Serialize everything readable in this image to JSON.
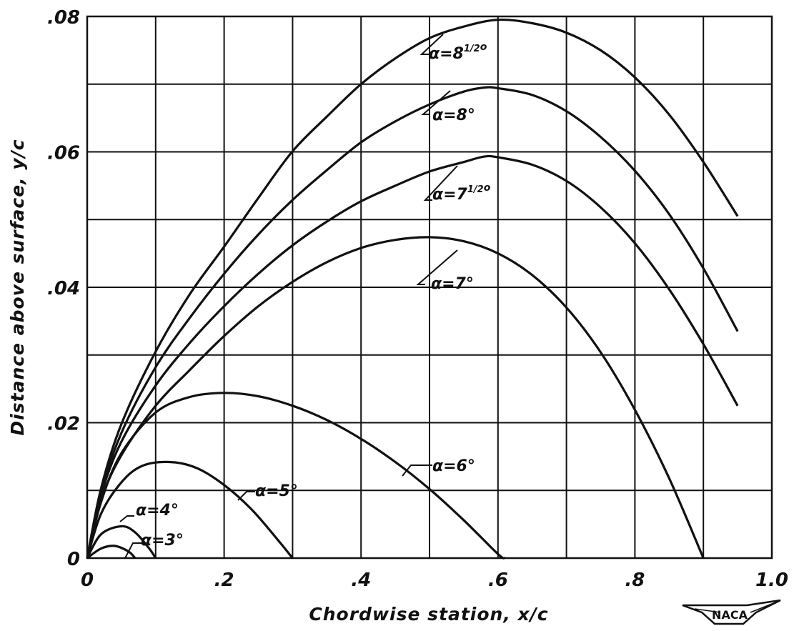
{
  "chart_data": {
    "type": "line",
    "title": "",
    "xlabel": "Chordwise station, x/c",
    "ylabel": "Distance above surface, y/c",
    "xlim": [
      0,
      1.0
    ],
    "ylim": [
      0,
      0.08
    ],
    "x_ticks": [
      {
        "value": 0,
        "label": "0"
      },
      {
        "value": 0.2,
        "label": ".2"
      },
      {
        "value": 0.4,
        "label": ".4"
      },
      {
        "value": 0.6,
        "label": ".6"
      },
      {
        "value": 0.8,
        "label": ".8"
      },
      {
        "value": 1.0,
        "label": "1.0"
      }
    ],
    "y_ticks": [
      {
        "value": 0,
        "label": "0"
      },
      {
        "value": 0.02,
        "label": ".02"
      },
      {
        "value": 0.04,
        "label": ".04"
      },
      {
        "value": 0.06,
        "label": ".06"
      },
      {
        "value": 0.08,
        "label": ".08"
      }
    ],
    "grid": true,
    "grid_step_x": 0.1,
    "grid_step_y": 0.01,
    "series": [
      {
        "name": "α=3°",
        "x": [
          0,
          0.02,
          0.04,
          0.06,
          0.07
        ],
        "y": [
          0,
          0.0014,
          0.0018,
          0.001,
          0
        ]
      },
      {
        "name": "α=4°",
        "x": [
          0,
          0.02,
          0.05,
          0.07,
          0.09,
          0.1
        ],
        "y": [
          0,
          0.0035,
          0.0047,
          0.0038,
          0.0015,
          0
        ]
      },
      {
        "name": "α=5°",
        "x": [
          0,
          0.02,
          0.05,
          0.08,
          0.12,
          0.16,
          0.2,
          0.24,
          0.28,
          0.3
        ],
        "y": [
          0,
          0.0065,
          0.0112,
          0.0136,
          0.0142,
          0.0133,
          0.0108,
          0.0072,
          0.0025,
          0
        ]
      },
      {
        "name": "α=6°",
        "x": [
          0,
          0.02,
          0.05,
          0.1,
          0.15,
          0.2,
          0.25,
          0.3,
          0.35,
          0.4,
          0.45,
          0.5,
          0.55,
          0.6,
          0.61
        ],
        "y": [
          0,
          0.0082,
          0.0155,
          0.0215,
          0.0238,
          0.0244,
          0.0239,
          0.0225,
          0.0204,
          0.0176,
          0.0142,
          0.0102,
          0.0056,
          0.0006,
          0
        ]
      },
      {
        "name": "α=7°",
        "x": [
          0,
          0.02,
          0.05,
          0.1,
          0.15,
          0.2,
          0.25,
          0.3,
          0.35,
          0.4,
          0.45,
          0.5,
          0.55,
          0.6,
          0.65,
          0.7,
          0.75,
          0.8,
          0.85,
          0.9
        ],
        "y": [
          0,
          0.0085,
          0.0152,
          0.0225,
          0.0278,
          0.0328,
          0.0372,
          0.0408,
          0.0437,
          0.0458,
          0.047,
          0.0474,
          0.0468,
          0.045,
          0.0418,
          0.037,
          0.0304,
          0.0219,
          0.0118,
          0
        ]
      },
      {
        "name": "α=7½°",
        "x": [
          0,
          0.02,
          0.05,
          0.1,
          0.15,
          0.2,
          0.25,
          0.3,
          0.35,
          0.4,
          0.45,
          0.5,
          0.55,
          0.58,
          0.6,
          0.65,
          0.7,
          0.75,
          0.8,
          0.85,
          0.9,
          0.95
        ],
        "y": [
          0,
          0.0092,
          0.0172,
          0.0255,
          0.0318,
          0.0372,
          0.042,
          0.0462,
          0.0497,
          0.0527,
          0.055,
          0.0571,
          0.0585,
          0.0593,
          0.0592,
          0.0581,
          0.0557,
          0.0518,
          0.0465,
          0.0397,
          0.0316,
          0.0225
        ]
      },
      {
        "name": "α=8°",
        "x": [
          0,
          0.02,
          0.05,
          0.1,
          0.15,
          0.2,
          0.25,
          0.3,
          0.35,
          0.4,
          0.45,
          0.5,
          0.55,
          0.58,
          0.6,
          0.65,
          0.7,
          0.75,
          0.8,
          0.85,
          0.9,
          0.95
        ],
        "y": [
          0,
          0.0095,
          0.0185,
          0.0282,
          0.0355,
          0.042,
          0.0478,
          0.0529,
          0.0573,
          0.0614,
          0.0645,
          0.067,
          0.0689,
          0.0695,
          0.0694,
          0.0684,
          0.066,
          0.0622,
          0.0572,
          0.0508,
          0.0428,
          0.0335
        ]
      },
      {
        "name": "α=8½°",
        "x": [
          0,
          0.02,
          0.05,
          0.1,
          0.15,
          0.2,
          0.25,
          0.3,
          0.35,
          0.4,
          0.45,
          0.5,
          0.55,
          0.6,
          0.65,
          0.7,
          0.75,
          0.8,
          0.85,
          0.9,
          0.95
        ],
        "y": [
          0,
          0.0102,
          0.0198,
          0.0305,
          0.039,
          0.046,
          0.0532,
          0.0601,
          0.0652,
          0.07,
          0.0738,
          0.0768,
          0.0785,
          0.0795,
          0.079,
          0.0776,
          0.075,
          0.071,
          0.0655,
          0.0585,
          0.0505
        ]
      }
    ],
    "labels": [
      {
        "text": "α=8",
        "frac": "1/2",
        "deg": "o"
      },
      {
        "text": "α=8°"
      },
      {
        "text": "α=7",
        "frac": "1/2",
        "deg": "o"
      },
      {
        "text": "α=7°"
      },
      {
        "text": "α=6°"
      },
      {
        "text": "α=5°"
      },
      {
        "text": "α=4°"
      },
      {
        "text": "α=3°"
      }
    ]
  },
  "logo": {
    "text": "NACA"
  }
}
